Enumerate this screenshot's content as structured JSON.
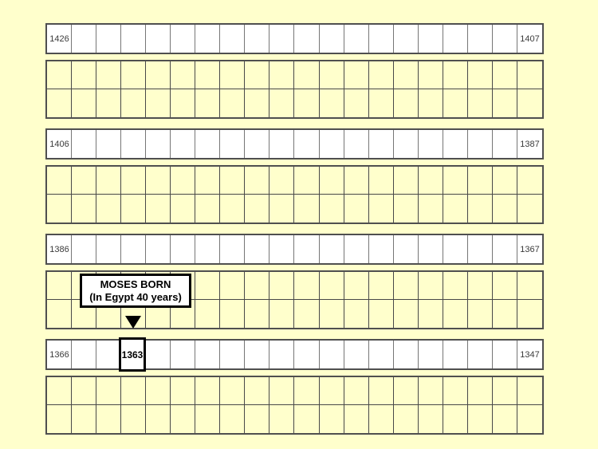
{
  "page": {
    "background_color": "#FFFFCC",
    "cell_white_color": "#FFFFFF",
    "cell_yellow_color": "#FFFFCC",
    "grid_border_color": "#4f4f4f",
    "accent_color": "#000000"
  },
  "grid": {
    "columns": 20,
    "bands": [
      {
        "kind": "year-row",
        "left_year": "1426",
        "right_year": "1407"
      },
      {
        "kind": "decade-block"
      },
      {
        "kind": "year-row",
        "left_year": "1406",
        "right_year": "1387"
      },
      {
        "kind": "decade-block"
      },
      {
        "kind": "year-row",
        "left_year": "1386",
        "right_year": "1367"
      },
      {
        "kind": "decade-block",
        "has_annotation": true
      },
      {
        "kind": "year-row",
        "left_year": "1366",
        "right_year": "1347",
        "highlight_col": 4,
        "highlight_year": "1363"
      },
      {
        "kind": "decade-block"
      }
    ]
  },
  "annotation": {
    "title": "MOSES BORN",
    "subtitle": "(In Egypt 40 years)",
    "marker": "down-triangle"
  }
}
